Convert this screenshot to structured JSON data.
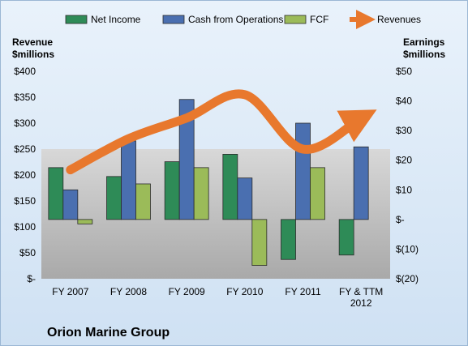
{
  "chart_data": {
    "type": "bar",
    "title": "Orion Marine Group",
    "categories": [
      [
        "FY 2007"
      ],
      [
        "FY 2008"
      ],
      [
        "FY 2009"
      ],
      [
        "FY 2010"
      ],
      [
        "FY 2011"
      ],
      [
        "FY & TTM",
        "2012"
      ]
    ],
    "left_axis": {
      "label": [
        "Revenue",
        "$millions"
      ],
      "ylim": [
        0,
        400
      ],
      "ticks": [
        0,
        50,
        100,
        150,
        200,
        250,
        300,
        350,
        400
      ],
      "tick_labels": [
        "$-",
        "$50",
        "$100",
        "$150",
        "$200",
        "$250",
        "$300",
        "$350",
        "$400"
      ]
    },
    "right_axis": {
      "label": [
        "Earnings",
        "$millions"
      ],
      "ylim": [
        -20,
        50
      ],
      "ticks": [
        -20,
        -10,
        0,
        10,
        20,
        30,
        40,
        50
      ],
      "tick_labels": [
        "$(20)",
        "$(10)",
        "$-",
        "$10",
        "$20",
        "$30",
        "$40",
        "$50"
      ]
    },
    "series": [
      {
        "name": "Net Income",
        "type": "bar",
        "axis": "right",
        "color": "#2e8b57",
        "values": [
          17.5,
          14.5,
          19.5,
          22,
          -13.5,
          -12
        ]
      },
      {
        "name": "Cash from Operations",
        "type": "bar",
        "axis": "right",
        "color": "#4a6fb0",
        "values": [
          10,
          26.5,
          40.5,
          14,
          32.5,
          24.5
        ]
      },
      {
        "name": "FCF",
        "type": "bar",
        "axis": "right",
        "color": "#9bbb59",
        "values": [
          -1.5,
          12,
          17.5,
          -15.5,
          17.5,
          0
        ]
      },
      {
        "name": "Revenues",
        "type": "line",
        "axis": "left",
        "color": "#e8782d",
        "values": [
          210,
          270,
          310,
          355,
          250,
          310
        ]
      }
    ],
    "legend_position": "top",
    "grid": false,
    "background_band": {
      "from": 250,
      "to": 0
    }
  }
}
